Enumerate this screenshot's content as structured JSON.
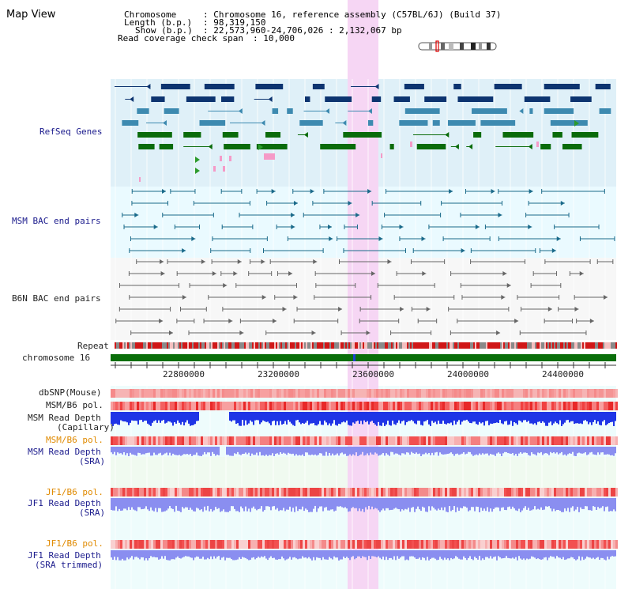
{
  "title": "Map View",
  "header": {
    "chromosome_key": "Chromosome",
    "chromosome_val": ": Chromosome 16, reference assembly (C57BL/6J) (Build 37)",
    "length_key": "Length (b.p.)",
    "length_val": ": 98,319,150",
    "show_key": "Show (b.p.)",
    "show_val": ": 22,573,960-24,706,026 : 2,132,067 bp",
    "span_key": "Read coverage check span",
    "span_val": ": 10,000"
  },
  "tracks": {
    "refseq": "RefSeq Genes",
    "msm_bac": "MSM BAC end pairs",
    "b6n_bac": "B6N BAC end pairs",
    "repeat": "Repeat",
    "chromosome": "chromosome 16",
    "dbsnp": "dbSNP(Mouse)",
    "msm_b6_pol_1": "MSM/B6 pol.",
    "msm_depth_cap_1": "MSM Read Depth",
    "msm_depth_cap_2": "(Capillary)",
    "msm_b6_pol_2": "MSM/B6 pol.",
    "msm_depth_sra_1": "MSM Read Depth",
    "msm_depth_sra_2": "(SRA)",
    "jf1_b6_pol_1": "JF1/B6 pol.",
    "jf1_depth_sra_1": "JF1 Read Depth",
    "jf1_depth_sra_2": "(SRA)",
    "jf1_b6_pol_2": "JF1/B6 pol.",
    "jf1_depth_trim_1": "JF1 Read Depth",
    "jf1_depth_trim_2": "(SRA trimmed)"
  },
  "axis": {
    "ticks": [
      "22800000",
      "23200000",
      "23600000",
      "24000000",
      "24400000"
    ]
  },
  "colors": {
    "refseq_bg": "#dff0f8",
    "bac_bg": "#eafaff",
    "highlight": "#f6d6f4",
    "chromosome_bar": "#0a6e0a",
    "depth_blue": "#1f35e6",
    "depth_light": "#8a8ef0"
  }
}
